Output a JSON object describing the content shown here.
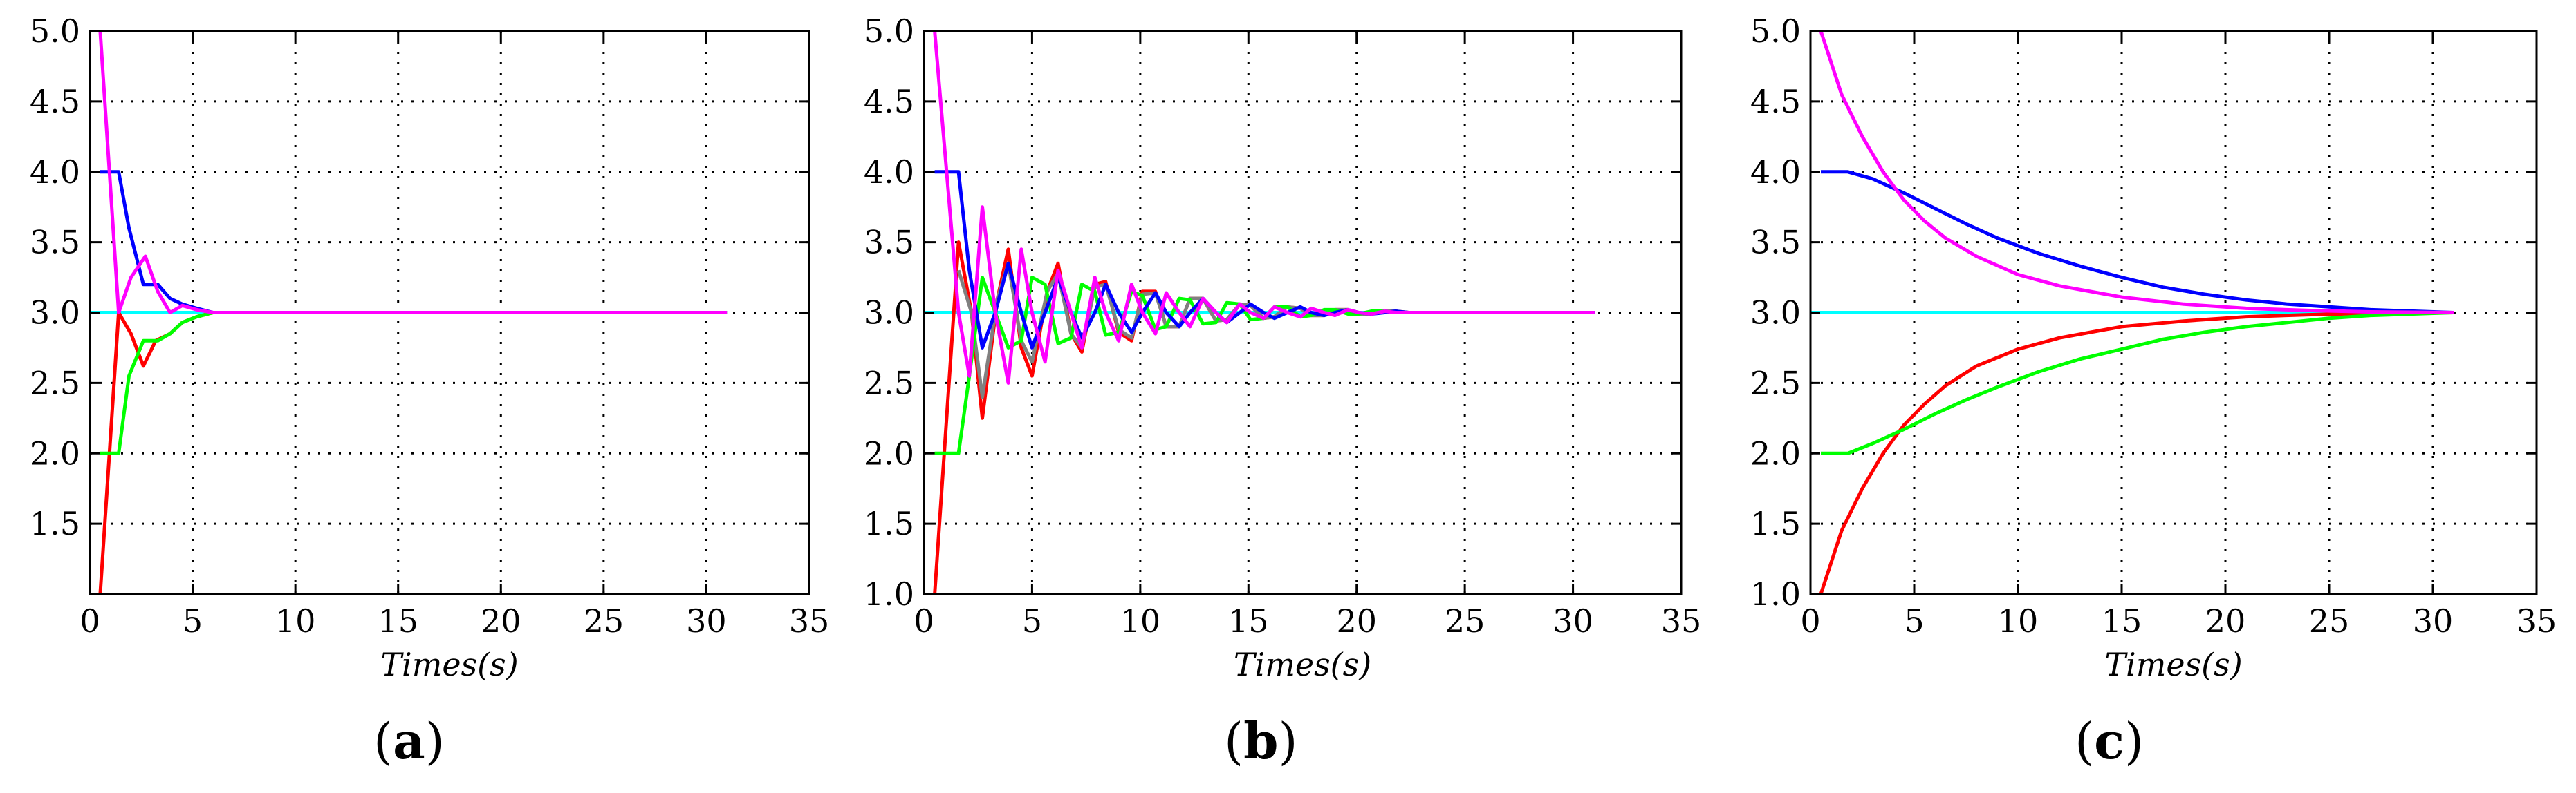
{
  "chart_data": [
    {
      "type": "line",
      "panel_label": "a",
      "xlabel": "Times(s)",
      "ylabel": "",
      "xlim": [
        0,
        35
      ],
      "ylim": [
        1.0,
        5.0
      ],
      "xticks": [
        0,
        5,
        10,
        15,
        20,
        25,
        30,
        35
      ],
      "yticks": [
        1.5,
        2.0,
        2.5,
        3.0,
        3.5,
        4.0,
        4.5,
        5.0
      ],
      "ytick_labels": [
        "1.5",
        "2.0",
        "2.5",
        "3.0",
        "3.5",
        "4.0",
        "4.5",
        "5.0"
      ],
      "grid": true,
      "series": [
        {
          "color": "#00ffff",
          "x": [
            0,
            31
          ],
          "y": [
            3.0,
            3.0
          ]
        },
        {
          "color": "#ff0000",
          "x": [
            0.5,
            1.4,
            2.0,
            2.6,
            3.2,
            3.9,
            4.5,
            5.2,
            6.0,
            8.0,
            31.0
          ],
          "y": [
            1.0,
            3.0,
            2.85,
            2.62,
            2.8,
            2.85,
            2.93,
            2.97,
            3.0,
            3.0,
            3.0
          ]
        },
        {
          "color": "#00ff00",
          "x": [
            0.5,
            1.4,
            1.9,
            2.6,
            3.3,
            3.9,
            4.5,
            5.2,
            6.0,
            8.0,
            31.0
          ],
          "y": [
            2.0,
            2.0,
            2.55,
            2.8,
            2.8,
            2.85,
            2.93,
            2.97,
            3.0,
            3.0,
            3.0
          ]
        },
        {
          "color": "#0000ff",
          "x": [
            0.5,
            1.4,
            1.9,
            2.6,
            3.3,
            3.9,
            4.5,
            5.2,
            6.0,
            8.0,
            31.0
          ],
          "y": [
            4.0,
            4.0,
            3.6,
            3.2,
            3.2,
            3.1,
            3.06,
            3.03,
            3.0,
            3.0,
            3.0
          ]
        },
        {
          "color": "#ff00ff",
          "x": [
            0.5,
            1.4,
            2.0,
            2.7,
            3.3,
            3.9,
            4.5,
            5.2,
            6.0,
            8.0,
            31.0
          ],
          "y": [
            5.0,
            3.0,
            3.25,
            3.4,
            3.15,
            3.0,
            3.05,
            3.02,
            3.0,
            3.0,
            3.0
          ]
        }
      ]
    },
    {
      "type": "line",
      "panel_label": "b",
      "xlabel": "Times(s)",
      "ylabel": "",
      "xlim": [
        0,
        35
      ],
      "ylim": [
        1.0,
        5.0
      ],
      "xticks": [
        0,
        5,
        10,
        15,
        20,
        25,
        30,
        35
      ],
      "yticks": [
        1.0,
        1.5,
        2.0,
        2.5,
        3.0,
        3.5,
        4.0,
        4.5,
        5.0
      ],
      "ytick_labels": [
        "1.0",
        "1.5",
        "2.0",
        "2.5",
        "3.0",
        "3.5",
        "4.0",
        "4.5",
        "5.0"
      ],
      "grid": true,
      "series": [
        {
          "color": "#00ffff",
          "x": [
            0,
            31
          ],
          "y": [
            3.0,
            3.0
          ]
        },
        {
          "color": "#ff0000",
          "x": [
            0.5,
            1.6,
            2.2,
            2.7,
            3.4,
            3.9,
            4.5,
            5.0,
            5.7,
            6.2,
            6.8,
            7.3,
            7.9,
            8.4,
            9.0,
            9.6,
            10.1,
            10.7,
            11.2,
            11.8,
            12.3,
            12.9,
            13.5,
            14.0,
            14.6,
            15.1,
            15.7,
            16.2,
            16.8,
            17.4,
            17.9,
            18.5,
            19.0,
            19.6,
            20.1,
            20.7,
            21.3,
            21.8,
            22.4,
            23.0,
            23.5,
            31.0
          ],
          "y": [
            1.0,
            3.5,
            3.0,
            2.25,
            3.1,
            3.45,
            2.75,
            2.55,
            3.15,
            3.35,
            2.85,
            2.72,
            3.2,
            3.22,
            2.86,
            2.8,
            3.15,
            3.15,
            2.9,
            2.9,
            3.1,
            3.1,
            2.94,
            2.95,
            3.06,
            3.05,
            2.96,
            2.97,
            3.04,
            3.03,
            2.98,
            2.98,
            3.02,
            3.02,
            2.99,
            2.99,
            3.01,
            3.01,
            3.0,
            3.0,
            3.0,
            3.0
          ]
        },
        {
          "color": "#808080",
          "x": [
            1.6,
            2.2,
            2.7,
            3.4,
            3.9,
            4.5,
            5.0,
            5.7,
            6.2,
            6.8,
            7.3,
            7.9,
            8.4,
            9.0,
            9.6,
            10.1,
            10.7,
            11.2,
            11.8,
            12.3,
            12.9,
            13.5,
            14.0,
            14.6,
            15.1,
            15.7,
            16.2,
            16.8,
            17.4,
            17.9,
            18.5,
            19.0,
            19.6,
            20.1,
            20.7,
            21.3,
            21.8,
            22.4,
            23.0,
            23.5
          ],
          "y": [
            3.3,
            3.0,
            2.4,
            3.1,
            3.35,
            2.8,
            2.65,
            3.15,
            3.28,
            2.85,
            2.75,
            3.18,
            3.2,
            2.88,
            2.82,
            3.13,
            3.14,
            2.9,
            2.9,
            3.1,
            3.1,
            2.94,
            2.95,
            3.06,
            3.05,
            2.96,
            2.97,
            3.04,
            3.03,
            2.98,
            2.98,
            3.02,
            3.02,
            2.99,
            2.99,
            3.01,
            3.01,
            3.0,
            3.0,
            3.0
          ]
        },
        {
          "color": "#00ff00",
          "x": [
            0.5,
            1.6,
            2.1,
            2.7,
            3.3,
            3.9,
            4.5,
            5.0,
            5.6,
            6.2,
            6.8,
            7.3,
            7.9,
            8.4,
            9.0,
            9.6,
            10.1,
            10.7,
            11.2,
            11.8,
            12.3,
            12.9,
            13.5,
            14.0,
            14.6,
            15.1,
            15.7,
            16.2,
            16.8,
            17.4,
            17.9,
            18.5,
            19.0,
            19.6,
            20.1,
            20.7,
            21.3,
            21.8,
            22.4,
            23.0,
            23.5,
            31.0
          ],
          "y": [
            2.0,
            2.0,
            2.55,
            3.25,
            3.0,
            2.75,
            2.8,
            3.25,
            3.2,
            2.78,
            2.82,
            3.2,
            3.15,
            2.84,
            2.86,
            3.15,
            3.12,
            2.88,
            2.9,
            3.1,
            3.09,
            2.92,
            2.93,
            3.07,
            3.06,
            2.95,
            2.96,
            3.04,
            3.04,
            2.97,
            2.98,
            3.02,
            3.02,
            2.99,
            2.99,
            3.01,
            3.01,
            3.0,
            3.0,
            3.0,
            3.0,
            3.0
          ]
        },
        {
          "color": "#0000ff",
          "x": [
            0.5,
            1.6,
            2.1,
            2.7,
            3.3,
            3.9,
            4.5,
            5.0,
            5.6,
            6.2,
            6.8,
            7.3,
            7.9,
            8.4,
            9.0,
            9.6,
            10.1,
            10.7,
            11.2,
            11.8,
            12.3,
            12.9,
            13.5,
            14.0,
            14.6,
            15.1,
            15.7,
            16.2,
            16.8,
            17.4,
            17.9,
            18.5,
            19.0,
            19.6,
            20.1,
            20.7,
            21.3,
            21.8,
            22.4,
            23.0,
            23.5,
            31.0
          ],
          "y": [
            4.0,
            4.0,
            3.3,
            2.75,
            3.0,
            3.35,
            3.0,
            2.75,
            3.0,
            3.25,
            3.0,
            2.82,
            3.0,
            3.2,
            3.0,
            2.86,
            3.0,
            3.14,
            3.0,
            2.9,
            3.0,
            3.1,
            3.0,
            2.93,
            3.0,
            3.06,
            3.0,
            2.96,
            3.0,
            3.04,
            3.0,
            2.98,
            3.0,
            3.02,
            3.0,
            2.99,
            3.0,
            3.01,
            3.0,
            3.0,
            3.0,
            3.0
          ]
        },
        {
          "color": "#ff00ff",
          "x": [
            0.5,
            1.6,
            2.1,
            2.7,
            3.3,
            3.9,
            4.5,
            5.0,
            5.6,
            6.2,
            6.8,
            7.3,
            7.9,
            8.4,
            9.0,
            9.6,
            10.1,
            10.7,
            11.2,
            11.8,
            12.3,
            12.9,
            13.5,
            14.0,
            14.6,
            15.1,
            15.7,
            16.2,
            16.8,
            17.4,
            17.9,
            18.5,
            19.0,
            19.6,
            20.1,
            20.7,
            21.3,
            21.8,
            22.4,
            23.0,
            23.5,
            31.0
          ],
          "y": [
            5.0,
            3.0,
            2.55,
            3.75,
            3.0,
            2.5,
            3.45,
            3.0,
            2.65,
            3.3,
            3.0,
            2.75,
            3.25,
            3.0,
            2.8,
            3.2,
            3.0,
            2.85,
            3.14,
            3.0,
            2.9,
            3.1,
            3.0,
            2.93,
            3.06,
            3.0,
            2.96,
            3.04,
            3.0,
            2.97,
            3.03,
            3.0,
            2.98,
            3.02,
            3.0,
            2.99,
            3.01,
            3.0,
            3.0,
            3.0,
            3.0,
            3.0
          ]
        }
      ]
    },
    {
      "type": "line",
      "panel_label": "c",
      "xlabel": "Times(s)",
      "ylabel": "",
      "xlim": [
        0,
        35
      ],
      "ylim": [
        1.0,
        5.0
      ],
      "xticks": [
        0,
        5,
        10,
        15,
        20,
        25,
        30,
        35
      ],
      "yticks": [
        1.0,
        1.5,
        2.0,
        2.5,
        3.0,
        3.5,
        4.0,
        4.5,
        5.0
      ],
      "ytick_labels": [
        "1.0",
        "1.5",
        "2.0",
        "2.5",
        "3.0",
        "3.5",
        "4.0",
        "4.5",
        "5.0"
      ],
      "grid": true,
      "series": [
        {
          "color": "#00ffff",
          "x": [
            0,
            31
          ],
          "y": [
            3.0,
            3.0
          ]
        },
        {
          "color": "#ff0000",
          "x": [
            0.5,
            1.5,
            2.5,
            3.5,
            4.5,
            5.5,
            6.5,
            8.0,
            10.0,
            12.0,
            15.0,
            18.0,
            21.0,
            24.0,
            27.0,
            31.0
          ],
          "y": [
            1.0,
            1.45,
            1.75,
            2.0,
            2.2,
            2.35,
            2.48,
            2.62,
            2.74,
            2.82,
            2.9,
            2.94,
            2.97,
            2.985,
            2.995,
            3.0
          ]
        },
        {
          "color": "#00ff00",
          "x": [
            0.5,
            1.8,
            3.0,
            4.5,
            6.0,
            7.5,
            9.0,
            11.0,
            13.0,
            15.0,
            17.0,
            19.0,
            21.0,
            23.0,
            25.0,
            27.0,
            31.0
          ],
          "y": [
            2.0,
            2.0,
            2.07,
            2.17,
            2.28,
            2.38,
            2.47,
            2.58,
            2.67,
            2.74,
            2.81,
            2.86,
            2.9,
            2.93,
            2.96,
            2.98,
            3.0
          ]
        },
        {
          "color": "#0000ff",
          "x": [
            0.5,
            1.8,
            3.0,
            4.5,
            6.0,
            7.5,
            9.0,
            11.0,
            13.0,
            15.0,
            17.0,
            19.0,
            21.0,
            23.0,
            25.0,
            27.0,
            31.0
          ],
          "y": [
            4.0,
            4.0,
            3.95,
            3.85,
            3.74,
            3.63,
            3.53,
            3.42,
            3.33,
            3.25,
            3.18,
            3.13,
            3.09,
            3.06,
            3.04,
            3.02,
            3.0
          ]
        },
        {
          "color": "#ff00ff",
          "x": [
            0.5,
            1.5,
            2.5,
            3.5,
            4.5,
            5.5,
            6.5,
            8.0,
            10.0,
            12.0,
            15.0,
            18.0,
            21.0,
            24.0,
            27.0,
            31.0
          ],
          "y": [
            5.0,
            4.55,
            4.25,
            4.0,
            3.8,
            3.65,
            3.53,
            3.4,
            3.27,
            3.19,
            3.11,
            3.06,
            3.03,
            3.015,
            3.005,
            3.0
          ]
        }
      ]
    }
  ]
}
